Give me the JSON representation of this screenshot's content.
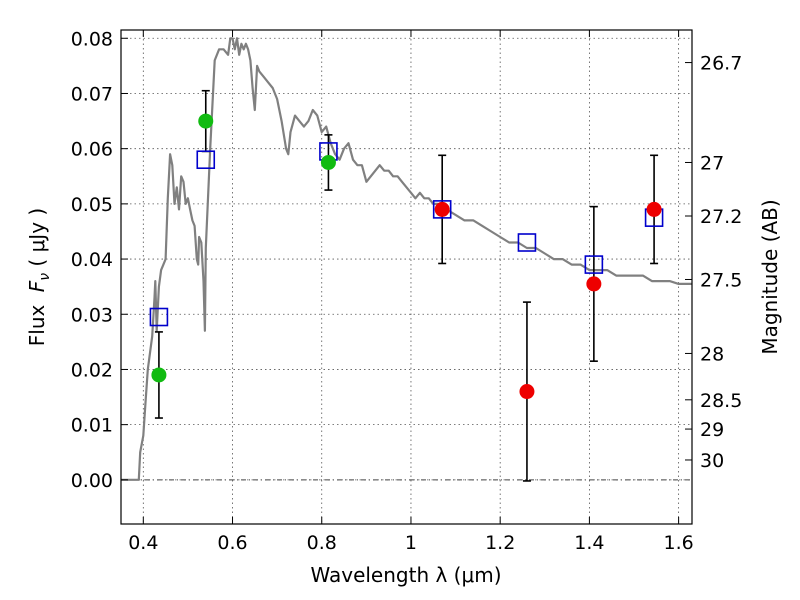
{
  "chart_data": {
    "type": "scatter",
    "xlabel": "Wavelength  λ (μm)",
    "ylabel_main": "Flux",
    "ylabel_symbol": "F",
    "ylabel_sub": "ν",
    "ylabel_units": " ( μJy )",
    "y2label": "Magnitude (AB)",
    "xlim": [
      0.35,
      1.63
    ],
    "ylim": [
      -0.008,
      0.0815
    ],
    "grid": true,
    "x_ticks": [
      {
        "value": 0.4,
        "label": "0.4"
      },
      {
        "value": 0.6,
        "label": "0.6"
      },
      {
        "value": 0.8,
        "label": "0.8"
      },
      {
        "value": 1.0,
        "label": "1"
      },
      {
        "value": 1.2,
        "label": "1.2"
      },
      {
        "value": 1.4,
        "label": "1.4"
      },
      {
        "value": 1.6,
        "label": "1.6"
      }
    ],
    "y_ticks": [
      {
        "value": 0.0,
        "label": "0.00"
      },
      {
        "value": 0.01,
        "label": "0.01"
      },
      {
        "value": 0.02,
        "label": "0.02"
      },
      {
        "value": 0.03,
        "label": "0.03"
      },
      {
        "value": 0.04,
        "label": "0.04"
      },
      {
        "value": 0.05,
        "label": "0.05"
      },
      {
        "value": 0.06,
        "label": "0.06"
      },
      {
        "value": 0.07,
        "label": "0.07"
      },
      {
        "value": 0.08,
        "label": "0.08"
      }
    ],
    "mag_ticks": [
      {
        "flux": 0.0756,
        "label": "26.7"
      },
      {
        "flux": 0.0575,
        "label": "27"
      },
      {
        "flux": 0.0478,
        "label": "27.2"
      },
      {
        "flux": 0.0363,
        "label": "27.5"
      },
      {
        "flux": 0.0229,
        "label": "28"
      },
      {
        "flux": 0.0145,
        "label": "28.5"
      },
      {
        "flux": 0.0092,
        "label": "29"
      },
      {
        "flux": 0.0036,
        "label": "30"
      }
    ],
    "sed_model": {
      "color": "#808080",
      "points": [
        [
          0.35,
          0.0
        ],
        [
          0.39,
          0.0
        ],
        [
          0.393,
          0.005
        ],
        [
          0.4,
          0.008
        ],
        [
          0.405,
          0.014
        ],
        [
          0.41,
          0.02
        ],
        [
          0.415,
          0.023
        ],
        [
          0.42,
          0.026
        ],
        [
          0.425,
          0.033
        ],
        [
          0.427,
          0.036
        ],
        [
          0.43,
          0.027
        ],
        [
          0.435,
          0.035
        ],
        [
          0.44,
          0.038
        ],
        [
          0.445,
          0.039
        ],
        [
          0.45,
          0.04
        ],
        [
          0.455,
          0.051
        ],
        [
          0.46,
          0.059
        ],
        [
          0.465,
          0.057
        ],
        [
          0.47,
          0.05
        ],
        [
          0.475,
          0.053
        ],
        [
          0.48,
          0.049
        ],
        [
          0.485,
          0.055
        ],
        [
          0.49,
          0.054
        ],
        [
          0.495,
          0.05
        ],
        [
          0.5,
          0.051
        ],
        [
          0.505,
          0.049
        ],
        [
          0.51,
          0.047
        ],
        [
          0.515,
          0.046
        ],
        [
          0.52,
          0.04
        ],
        [
          0.523,
          0.039
        ],
        [
          0.525,
          0.044
        ],
        [
          0.53,
          0.043
        ],
        [
          0.535,
          0.036
        ],
        [
          0.538,
          0.027
        ],
        [
          0.54,
          0.042
        ],
        [
          0.55,
          0.06
        ],
        [
          0.56,
          0.076
        ],
        [
          0.57,
          0.078
        ],
        [
          0.58,
          0.078
        ],
        [
          0.59,
          0.077
        ],
        [
          0.595,
          0.08
        ],
        [
          0.6,
          0.08
        ],
        [
          0.605,
          0.078
        ],
        [
          0.61,
          0.08
        ],
        [
          0.615,
          0.077
        ],
        [
          0.62,
          0.079
        ],
        [
          0.625,
          0.078
        ],
        [
          0.63,
          0.079
        ],
        [
          0.635,
          0.078
        ],
        [
          0.64,
          0.076
        ],
        [
          0.645,
          0.071
        ],
        [
          0.65,
          0.067
        ],
        [
          0.655,
          0.075
        ],
        [
          0.66,
          0.074
        ],
        [
          0.67,
          0.073
        ],
        [
          0.68,
          0.072
        ],
        [
          0.69,
          0.071
        ],
        [
          0.7,
          0.069
        ],
        [
          0.71,
          0.065
        ],
        [
          0.72,
          0.06
        ],
        [
          0.725,
          0.059
        ],
        [
          0.73,
          0.063
        ],
        [
          0.74,
          0.066
        ],
        [
          0.75,
          0.065
        ],
        [
          0.76,
          0.064
        ],
        [
          0.77,
          0.065
        ],
        [
          0.78,
          0.067
        ],
        [
          0.79,
          0.066
        ],
        [
          0.8,
          0.063
        ],
        [
          0.81,
          0.064
        ],
        [
          0.82,
          0.061
        ],
        [
          0.83,
          0.059
        ],
        [
          0.84,
          0.058
        ],
        [
          0.85,
          0.06
        ],
        [
          0.86,
          0.061
        ],
        [
          0.87,
          0.058
        ],
        [
          0.88,
          0.057
        ],
        [
          0.89,
          0.057
        ],
        [
          0.9,
          0.054
        ],
        [
          0.91,
          0.055
        ],
        [
          0.92,
          0.056
        ],
        [
          0.93,
          0.057
        ],
        [
          0.94,
          0.056
        ],
        [
          0.95,
          0.056
        ],
        [
          0.96,
          0.055
        ],
        [
          0.97,
          0.055
        ],
        [
          0.98,
          0.054
        ],
        [
          0.99,
          0.053
        ],
        [
          1.0,
          0.052
        ],
        [
          1.01,
          0.051
        ],
        [
          1.02,
          0.052
        ],
        [
          1.03,
          0.051
        ],
        [
          1.04,
          0.051
        ],
        [
          1.05,
          0.05
        ],
        [
          1.06,
          0.05
        ],
        [
          1.08,
          0.049
        ],
        [
          1.1,
          0.048
        ],
        [
          1.12,
          0.047
        ],
        [
          1.14,
          0.047
        ],
        [
          1.16,
          0.046
        ],
        [
          1.18,
          0.045
        ],
        [
          1.2,
          0.044
        ],
        [
          1.22,
          0.043
        ],
        [
          1.24,
          0.043
        ],
        [
          1.26,
          0.042
        ],
        [
          1.28,
          0.042
        ],
        [
          1.3,
          0.041
        ],
        [
          1.32,
          0.04
        ],
        [
          1.34,
          0.04
        ],
        [
          1.36,
          0.039
        ],
        [
          1.38,
          0.039
        ],
        [
          1.4,
          0.038
        ],
        [
          1.42,
          0.038
        ],
        [
          1.44,
          0.038
        ],
        [
          1.46,
          0.037
        ],
        [
          1.48,
          0.037
        ],
        [
          1.5,
          0.037
        ],
        [
          1.52,
          0.037
        ],
        [
          1.54,
          0.036
        ],
        [
          1.56,
          0.036
        ],
        [
          1.58,
          0.036
        ],
        [
          1.6,
          0.0355
        ],
        [
          1.63,
          0.0355
        ]
      ]
    },
    "model_fluxes": {
      "color": "#0000cc",
      "points": [
        {
          "x": 0.435,
          "y": 0.0295
        },
        {
          "x": 0.54,
          "y": 0.058
        },
        {
          "x": 0.815,
          "y": 0.0595
        },
        {
          "x": 1.07,
          "y": 0.049
        },
        {
          "x": 1.26,
          "y": 0.043
        },
        {
          "x": 1.41,
          "y": 0.039
        },
        {
          "x": 1.545,
          "y": 0.0475
        }
      ]
    },
    "observed_green": {
      "color": "#11bb11",
      "points": [
        {
          "x": 0.435,
          "y": 0.019,
          "err": 0.0078
        },
        {
          "x": 0.54,
          "y": 0.065,
          "err": 0.0055
        },
        {
          "x": 0.815,
          "y": 0.0575,
          "err": 0.005
        }
      ]
    },
    "observed_red": {
      "color": "#ee0000",
      "points": [
        {
          "x": 1.07,
          "y": 0.049,
          "err": 0.0098
        },
        {
          "x": 1.26,
          "y": 0.016,
          "err": 0.0162
        },
        {
          "x": 1.41,
          "y": 0.0355,
          "err": 0.014
        },
        {
          "x": 1.545,
          "y": 0.049,
          "err": 0.0098
        }
      ]
    }
  }
}
